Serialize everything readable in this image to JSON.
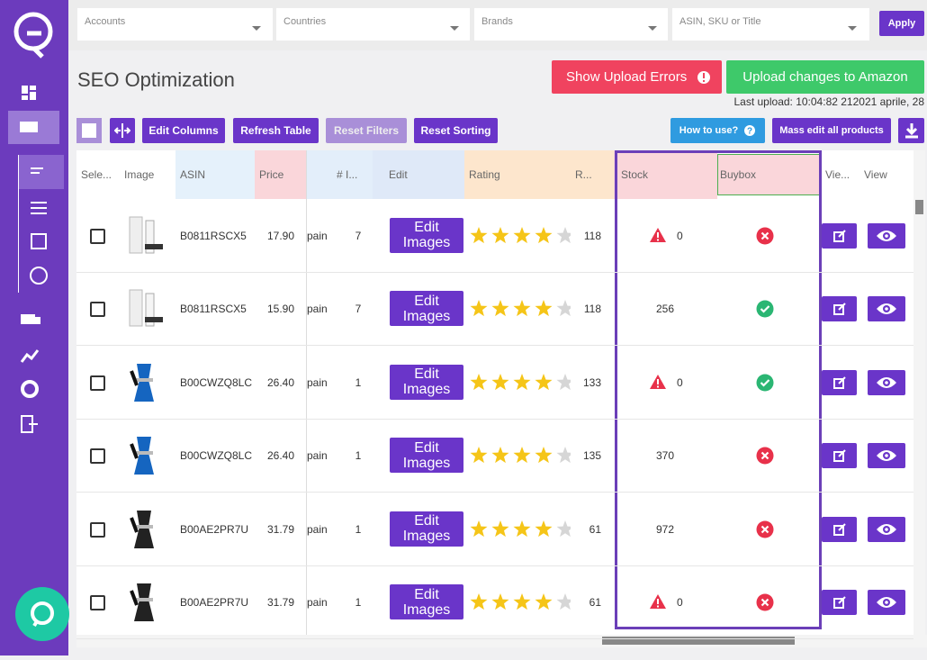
{
  "filters": [
    "Accounts",
    "Countries",
    "Brands",
    "ASIN, SKU or Title"
  ],
  "apply": "Apply",
  "title": "SEO Optimization",
  "upload_errors": "Show Upload Errors",
  "upload_changes": "Upload changes to Amazon",
  "last_upload": "Last upload: 10:04:82 212021 aprile, 28",
  "toolbar": {
    "edit_columns": "Edit Columns",
    "refresh_table": "Refresh Table",
    "reset_filters": "Reset Filters",
    "reset_sorting": "Reset Sorting",
    "how_to_use": "How to use?",
    "mass_edit": "Mass edit all products"
  },
  "table": {
    "columns": {
      "select": "Sele...",
      "image": "Image",
      "asin": "ASIN",
      "price": "Price",
      "count": "# I...",
      "edit": "Edit",
      "rating": "Rating",
      "reviews": "R...",
      "stock": "Stock",
      "buybox": "Buybox",
      "view_edit": "Vie...",
      "view": "View"
    },
    "rows": [
      {
        "asin": "B0811RSCX5",
        "price": "17.90",
        "marketplace": "pain",
        "count": "7",
        "edit": "Edit Images",
        "rating": 4,
        "reviews": "118",
        "stock": "0",
        "stock_warning": true,
        "buybox": false
      },
      {
        "asin": "B0811RSCX5",
        "price": "15.90",
        "marketplace": "pain",
        "count": "7",
        "edit": "Edit Images",
        "rating": 4,
        "reviews": "118",
        "stock": "256",
        "stock_warning": false,
        "buybox": true
      },
      {
        "asin": "B00CWZQ8LC",
        "price": "26.40",
        "marketplace": "pain",
        "count": "1",
        "edit": "Edit Images",
        "rating": 4,
        "reviews": "133",
        "stock": "0",
        "stock_warning": true,
        "buybox": true
      },
      {
        "asin": "B00CWZQ8LC",
        "price": "26.40",
        "marketplace": "pain",
        "count": "1",
        "edit": "Edit Images",
        "rating": 4,
        "reviews": "135",
        "stock": "370",
        "stock_warning": false,
        "buybox": false
      },
      {
        "asin": "B00AE2PR7U",
        "price": "31.79",
        "marketplace": "pain",
        "count": "1",
        "edit": "Edit Images",
        "rating": 4,
        "reviews": "61",
        "stock": "972",
        "stock_warning": false,
        "buybox": false
      },
      {
        "asin": "B00AE2PR7U",
        "price": "31.79",
        "marketplace": "pain",
        "count": "1",
        "edit": "Edit Images",
        "rating": 4,
        "reviews": "61",
        "stock": "0",
        "stock_warning": true,
        "buybox": false
      }
    ]
  }
}
